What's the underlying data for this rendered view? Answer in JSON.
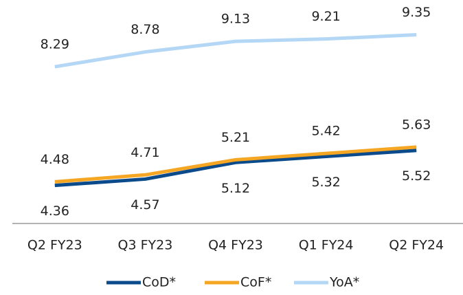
{
  "chart_data": {
    "type": "line",
    "categories": [
      "Q2 FY23",
      "Q3 FY23",
      "Q4 FY23",
      "Q1 FY24",
      "Q2 FY24"
    ],
    "series": [
      {
        "name": "CoD*",
        "color": "#0b4a8b",
        "values": [
          4.36,
          4.57,
          5.12,
          5.32,
          5.52
        ]
      },
      {
        "name": "CoF*",
        "color": "#f5a623",
        "values": [
          4.48,
          4.71,
          5.21,
          5.42,
          5.63
        ]
      },
      {
        "name": "YoA*",
        "color": "#b3d7f5",
        "values": [
          8.29,
          8.78,
          9.13,
          9.21,
          9.35
        ]
      }
    ],
    "ylim": [
      3.1,
      10.5
    ],
    "legend": "bottom"
  }
}
